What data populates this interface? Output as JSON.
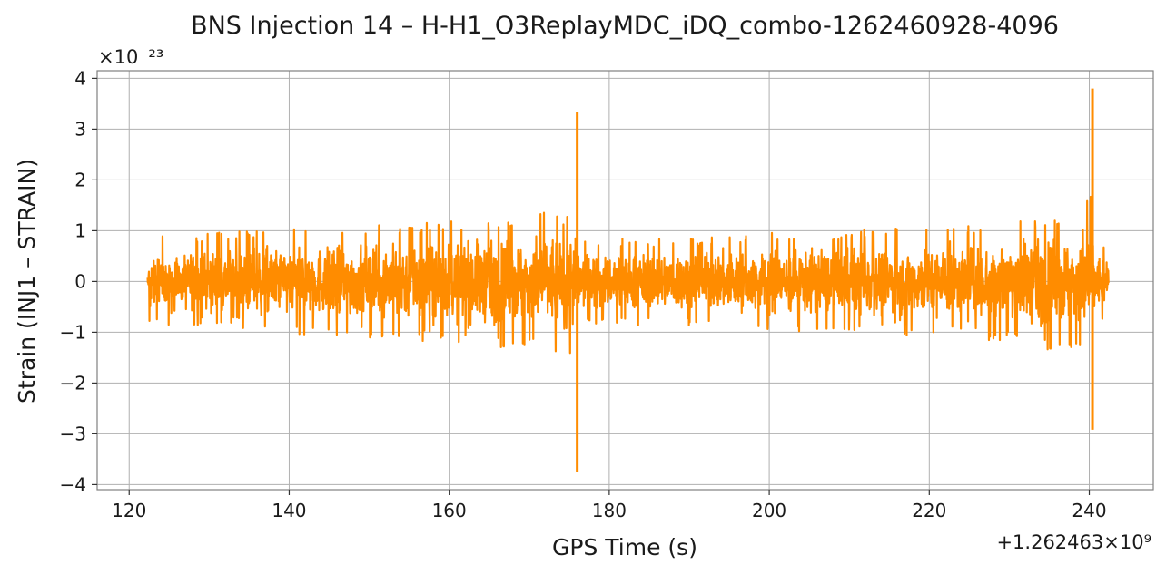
{
  "chart_data": {
    "type": "line",
    "title": "BNS Injection 14 – H-H1_O3ReplayMDC_iDQ_combo-1262460928-4096",
    "xlabel": "GPS Time (s)",
    "ylabel": "Strain (INJ1 – STRAIN)",
    "x_offset_label": "+1.262463×10⁹",
    "y_scale_label": "×10⁻²³",
    "xlim": [
      116,
      248
    ],
    "ylim": [
      -4.1,
      4.15
    ],
    "x_ticks": [
      120,
      140,
      160,
      180,
      200,
      220,
      240
    ],
    "x_tick_labels": [
      "120",
      "140",
      "160",
      "180",
      "200",
      "220",
      "240"
    ],
    "y_ticks": [
      -4,
      -3,
      -2,
      -1,
      0,
      1,
      2,
      3,
      4
    ],
    "y_tick_labels": [
      "−4",
      "−3",
      "−2",
      "−1",
      "0",
      "1",
      "2",
      "3",
      "4"
    ],
    "grid": true,
    "color": "#ff8c00",
    "series": [
      {
        "x_range": [
          122.3,
          242.4
        ],
        "noise_envelope": [
          {
            "x": 122.3,
            "amp": 0.85
          },
          {
            "x": 135,
            "amp": 0.95
          },
          {
            "x": 150,
            "amp": 1.05
          },
          {
            "x": 165,
            "amp": 1.2
          },
          {
            "x": 175.5,
            "amp": 1.45
          },
          {
            "x": 176.5,
            "amp": 0.8
          },
          {
            "x": 190,
            "amp": 0.85
          },
          {
            "x": 205,
            "amp": 0.95
          },
          {
            "x": 225,
            "amp": 1.05
          },
          {
            "x": 238,
            "amp": 1.35
          },
          {
            "x": 240.3,
            "amp": 1.7
          },
          {
            "x": 240.8,
            "amp": 0.8
          },
          {
            "x": 242.4,
            "amp": 0.7
          }
        ],
        "spikes": [
          {
            "x": 176.0,
            "min": -3.75,
            "max": 3.33
          },
          {
            "x": 240.4,
            "min": -2.92,
            "max": 3.8
          }
        ]
      }
    ]
  }
}
